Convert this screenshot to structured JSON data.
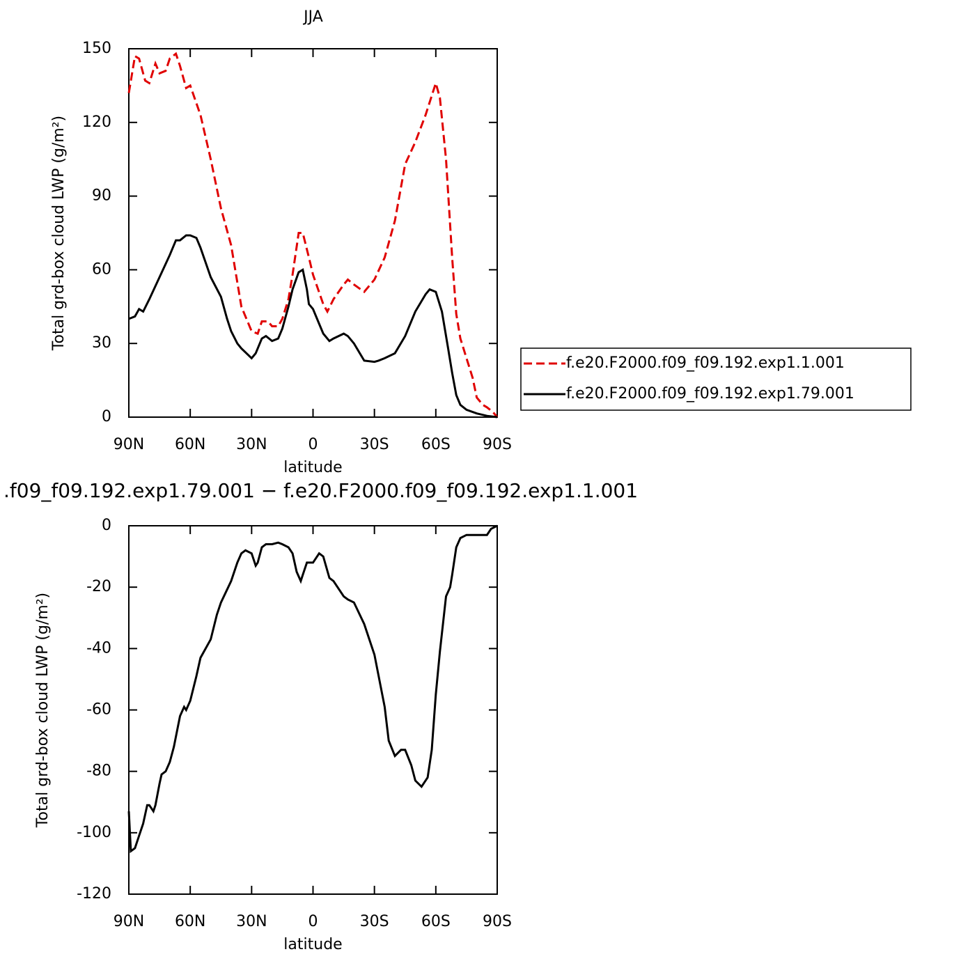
{
  "chart_data": [
    {
      "type": "line",
      "title": "JJA",
      "xlabel": "latitude",
      "ylabel": "Total grd-box cloud LWP (g/m²)",
      "xlim": [
        90,
        -90
      ],
      "xticks": [
        {
          "value": 90,
          "label": "90N"
        },
        {
          "value": 60,
          "label": "60N"
        },
        {
          "value": 30,
          "label": "30N"
        },
        0,
        {
          "value": -30,
          "label": "30S"
        },
        {
          "value": -60,
          "label": "60S"
        },
        {
          "value": -90,
          "label": "90S"
        }
      ],
      "ylim": [
        0,
        150
      ],
      "yticks": [
        0,
        30,
        60,
        90,
        120,
        150
      ],
      "legend": "right",
      "series": [
        {
          "name": "f.e20.F2000.f09_f09.192.exp1.1.001",
          "color": "#e00000",
          "dashed": true,
          "x": [
            90,
            87,
            85,
            82,
            80,
            77,
            75,
            72,
            70,
            67,
            65,
            62,
            60,
            55,
            50,
            45,
            40,
            35,
            30,
            27,
            25,
            22,
            20,
            17,
            15,
            12,
            10,
            7,
            5,
            2,
            0,
            -5,
            -7,
            -10,
            -15,
            -17,
            -20,
            -25,
            -30,
            -35,
            -40,
            -45,
            -50,
            -55,
            -60,
            -62,
            -65,
            -68,
            -70,
            -72,
            -75,
            -78,
            -80,
            -83,
            -85,
            -88,
            -90
          ],
          "values": [
            132,
            147,
            146,
            137,
            136,
            144,
            140,
            141,
            146,
            148,
            143,
            134,
            135,
            123,
            105,
            85,
            70,
            45,
            35,
            34,
            39,
            39,
            37,
            37,
            40,
            48,
            58,
            75,
            75,
            65,
            58,
            46,
            43,
            48,
            54,
            56,
            54,
            51,
            56,
            65,
            80,
            103,
            112,
            123,
            136,
            130,
            105,
            65,
            42,
            32,
            24,
            16,
            8,
            5,
            4,
            2,
            0
          ]
        },
        {
          "name": "f.e20.F2000.f09_f09.192.exp1.79.001",
          "color": "#000000",
          "dashed": false,
          "x": [
            90,
            87,
            85,
            83,
            80,
            75,
            70,
            67,
            65,
            62,
            60,
            57,
            55,
            50,
            45,
            42,
            40,
            37,
            35,
            30,
            28,
            25,
            23,
            20,
            17,
            15,
            12,
            10,
            7,
            5,
            3,
            2,
            0,
            -3,
            -5,
            -8,
            -10,
            -15,
            -17,
            -20,
            -25,
            -30,
            -32,
            -35,
            -40,
            -45,
            -50,
            -55,
            -57,
            -60,
            -63,
            -66,
            -68,
            -70,
            -72,
            -75,
            -80,
            -85,
            -90
          ],
          "values": [
            40,
            41,
            44,
            43,
            48,
            57,
            66,
            72,
            72,
            74,
            74,
            73,
            69,
            57,
            49,
            40,
            35,
            30,
            28,
            24,
            26,
            32,
            33,
            31,
            32,
            36,
            45,
            52,
            59,
            60,
            52,
            46,
            44,
            38,
            34,
            31,
            32,
            34,
            33,
            30,
            23,
            22.5,
            23,
            24,
            26,
            33,
            43,
            50,
            52,
            51,
            43,
            28,
            18,
            9,
            5,
            3,
            1.5,
            0.5,
            0
          ]
        }
      ]
    },
    {
      "type": "line",
      "title": ".f09_f09.192.exp1.79.001 − f.e20.F2000.f09_f09.192.exp1.1.001",
      "xlabel": "latitude",
      "ylabel": "Total grd-box cloud LWP (g/m²)",
      "xlim": [
        90,
        -90
      ],
      "xticks": [
        {
          "value": 90,
          "label": "90N"
        },
        {
          "value": 60,
          "label": "60N"
        },
        {
          "value": 30,
          "label": "30N"
        },
        0,
        {
          "value": -30,
          "label": "30S"
        },
        {
          "value": -60,
          "label": "60S"
        },
        {
          "value": -90,
          "label": "90S"
        }
      ],
      "ylim": [
        -120,
        0
      ],
      "yticks": [
        -120,
        -100,
        -80,
        -60,
        -40,
        -20,
        0
      ],
      "series": [
        {
          "color": "#000000",
          "dashed": false,
          "x": [
            90,
            89,
            87,
            85,
            83,
            81,
            80,
            78,
            77,
            75,
            74,
            72,
            70,
            68,
            65,
            63,
            62,
            60,
            57,
            55,
            50,
            47,
            45,
            40,
            37,
            35,
            33,
            30,
            28,
            27,
            25,
            23,
            20,
            17,
            15,
            12,
            10,
            8,
            6,
            5,
            3,
            0,
            -3,
            -5,
            -8,
            -10,
            -15,
            -17,
            -20,
            -25,
            -30,
            -35,
            -37,
            -40,
            -43,
            -45,
            -48,
            -50,
            -53,
            -56,
            -58,
            -60,
            -62,
            -65,
            -67,
            -68,
            -70,
            -72,
            -75,
            -80,
            -85,
            -87,
            -90
          ],
          "values": [
            -93,
            -106,
            -105,
            -101,
            -97,
            -91,
            -91,
            -93,
            -91,
            -84,
            -81,
            -80,
            -77,
            -72,
            -62,
            -59,
            -60,
            -57,
            -49,
            -43,
            -37,
            -29,
            -25,
            -18,
            -12,
            -9,
            -8,
            -9,
            -13,
            -12,
            -7,
            -6,
            -6,
            -5.5,
            -6,
            -7,
            -9,
            -15,
            -18,
            -16,
            -12,
            -12,
            -9,
            -10,
            -17,
            -18,
            -23,
            -24,
            -25,
            -32,
            -42,
            -59,
            -70,
            -75,
            -73,
            -73,
            -78,
            -83,
            -85,
            -82,
            -73,
            -55,
            -41,
            -23,
            -20,
            -16,
            -7,
            -4,
            -3,
            -3,
            -3,
            -1,
            0
          ]
        }
      ]
    }
  ]
}
